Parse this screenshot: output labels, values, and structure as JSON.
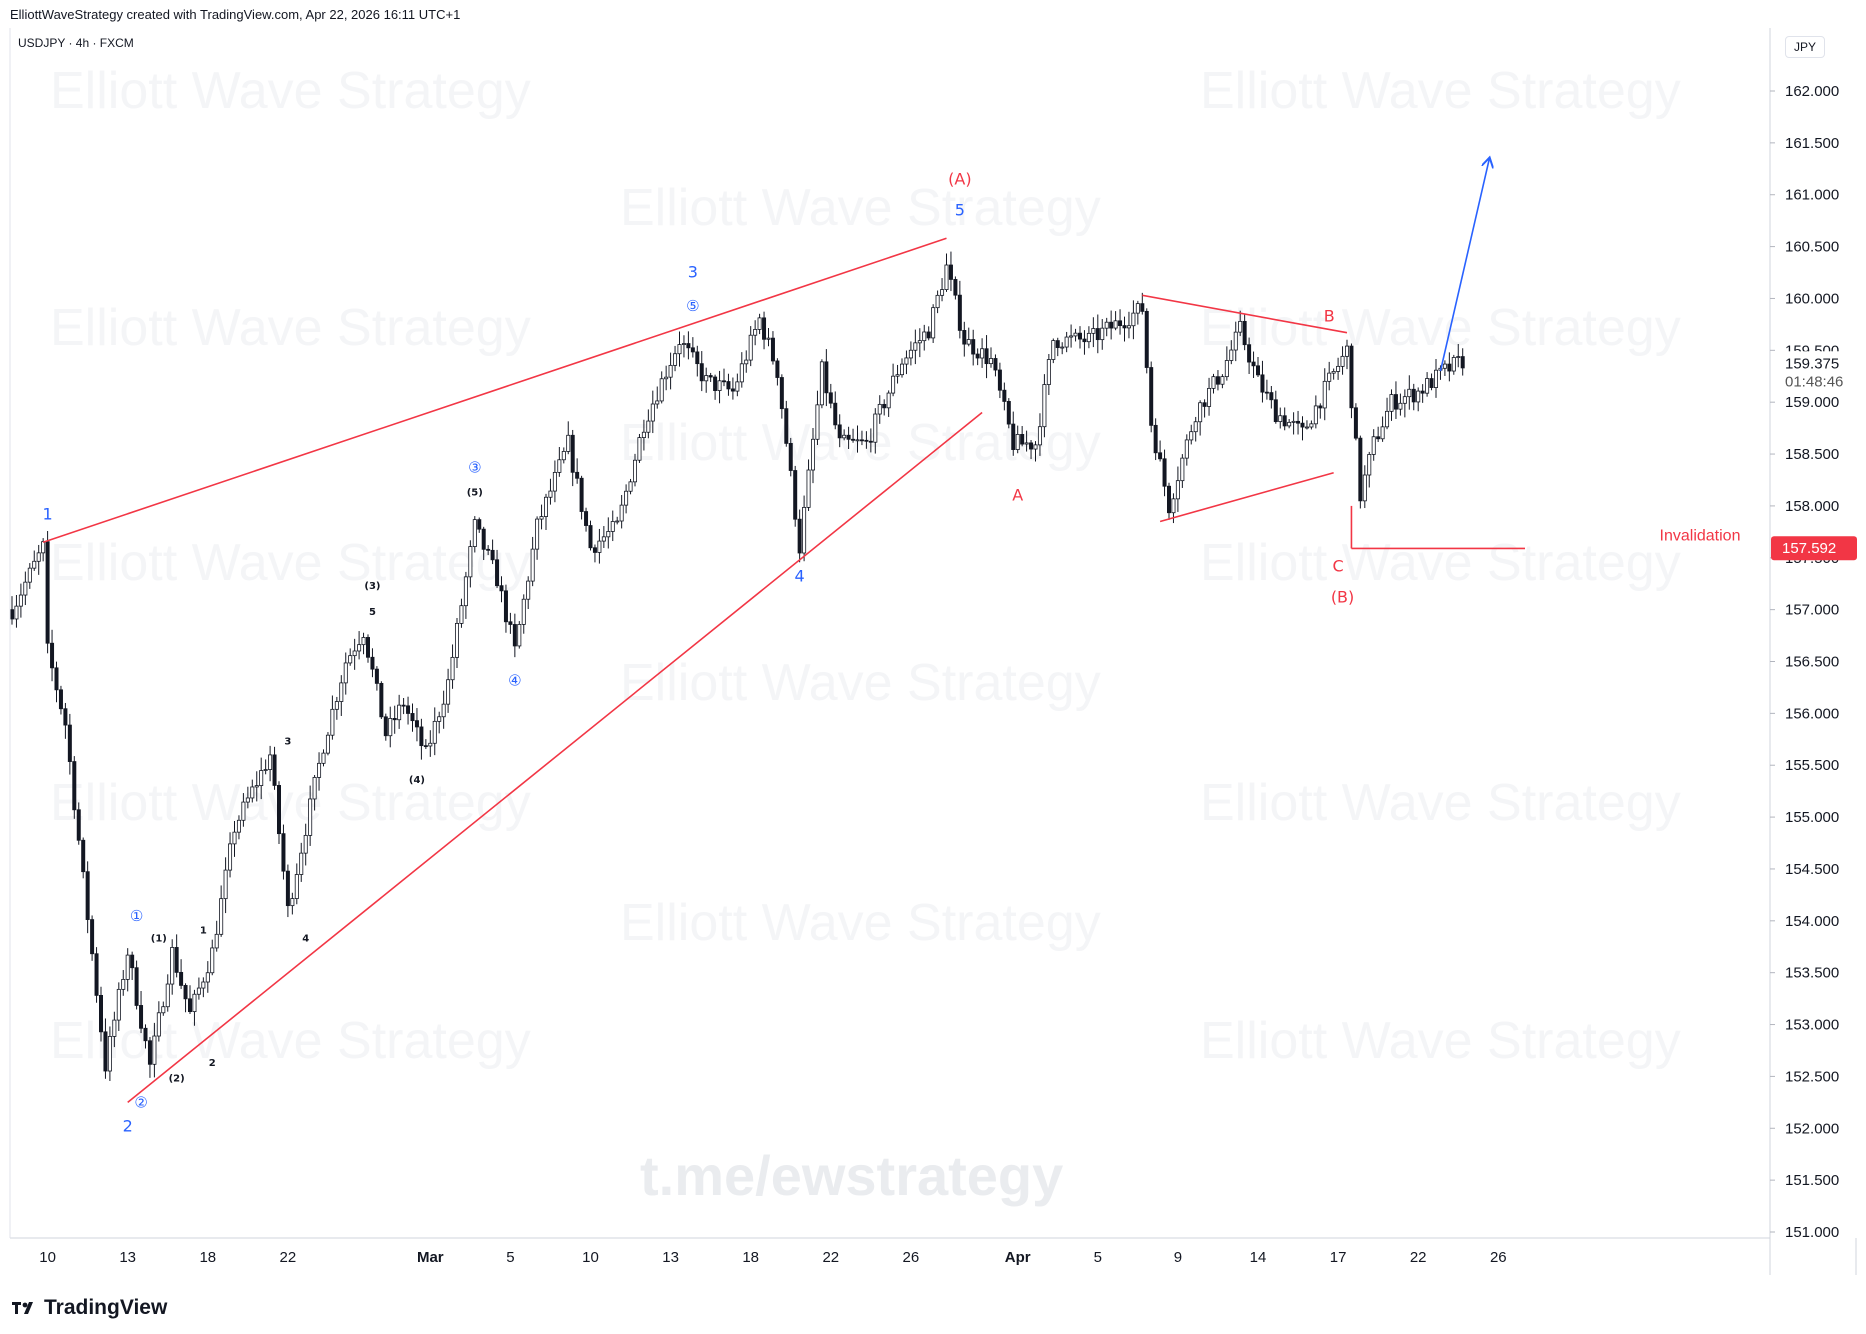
{
  "header": {
    "caption": "ElliottWaveStrategy created with TradingView.com, Apr 22, 2026 16:11 UTC+1",
    "symbol_line": "USDJPY · 4h · FXCM",
    "currency_button": "JPY"
  },
  "footer": {
    "brand": "TradingView"
  },
  "watermarks": {
    "tile_text": "Elliott Wave Strategy",
    "url": "t.me/ewstrategy"
  },
  "colors": {
    "red": "#f23645",
    "blue": "#2962ff",
    "candle": "#131722",
    "grid": "#e0e3eb"
  },
  "chart_data": {
    "type": "candlestick",
    "title": "",
    "xlabel": "",
    "ylabel": "",
    "price_scale": {
      "ylim": [
        151.0,
        162.0
      ]
    },
    "y_ticks": [
      "162.000",
      "161.500",
      "161.000",
      "160.500",
      "160.000",
      "159.500",
      "159.000",
      "158.500",
      "158.000",
      "157.500",
      "157.000",
      "156.500",
      "156.000",
      "155.500",
      "155.000",
      "154.500",
      "154.000",
      "153.500",
      "153.000",
      "152.500",
      "152.000",
      "151.500",
      "151.000"
    ],
    "x_ticks": [
      {
        "label": "10",
        "i": 8
      },
      {
        "label": "13",
        "i": 26
      },
      {
        "label": "18",
        "i": 44
      },
      {
        "label": "22",
        "i": 62
      },
      {
        "label": "Mar",
        "i": 94,
        "bold": true
      },
      {
        "label": "5",
        "i": 112
      },
      {
        "label": "10",
        "i": 130
      },
      {
        "label": "13",
        "i": 148
      },
      {
        "label": "18",
        "i": 166
      },
      {
        "label": "22",
        "i": 184
      },
      {
        "label": "26",
        "i": 202
      },
      {
        "label": "Apr",
        "i": 226,
        "bold": true
      },
      {
        "label": "5",
        "i": 244
      },
      {
        "label": "9",
        "i": 262
      },
      {
        "label": "14",
        "i": 280
      },
      {
        "label": "17",
        "i": 298
      },
      {
        "label": "22",
        "i": 316
      },
      {
        "label": "26",
        "i": 334
      }
    ],
    "last_price": "159.375",
    "countdown": "01:48:46",
    "invalidation_price": "157.592",
    "invalidation_label": "Invalidation",
    "path": [
      {
        "i": 0,
        "p": 157.0
      },
      {
        "i": 7,
        "p": 157.6
      },
      {
        "i": 8,
        "p": 156.6
      },
      {
        "i": 12,
        "p": 155.9
      },
      {
        "i": 16,
        "p": 154.4
      },
      {
        "i": 21,
        "p": 152.6
      },
      {
        "i": 26,
        "p": 153.7
      },
      {
        "i": 31,
        "p": 152.6
      },
      {
        "i": 36,
        "p": 153.7
      },
      {
        "i": 40,
        "p": 153.1
      },
      {
        "i": 45,
        "p": 153.7
      },
      {
        "i": 50,
        "p": 154.9
      },
      {
        "i": 58,
        "p": 155.6
      },
      {
        "i": 62,
        "p": 154.1
      },
      {
        "i": 70,
        "p": 155.7
      },
      {
        "i": 75,
        "p": 156.5
      },
      {
        "i": 79,
        "p": 156.8
      },
      {
        "i": 84,
        "p": 155.8
      },
      {
        "i": 88,
        "p": 156.1
      },
      {
        "i": 93,
        "p": 155.6
      },
      {
        "i": 98,
        "p": 156.3
      },
      {
        "i": 104,
        "p": 157.8
      },
      {
        "i": 109,
        "p": 157.3
      },
      {
        "i": 113,
        "p": 156.6
      },
      {
        "i": 118,
        "p": 157.8
      },
      {
        "i": 125,
        "p": 158.6
      },
      {
        "i": 130,
        "p": 157.6
      },
      {
        "i": 136,
        "p": 157.8
      },
      {
        "i": 142,
        "p": 158.8
      },
      {
        "i": 150,
        "p": 159.6
      },
      {
        "i": 156,
        "p": 159.2
      },
      {
        "i": 162,
        "p": 159.1
      },
      {
        "i": 168,
        "p": 159.8
      },
      {
        "i": 172,
        "p": 159.3
      },
      {
        "i": 177,
        "p": 157.6
      },
      {
        "i": 182,
        "p": 159.3
      },
      {
        "i": 186,
        "p": 158.6
      },
      {
        "i": 192,
        "p": 158.6
      },
      {
        "i": 200,
        "p": 159.4
      },
      {
        "i": 206,
        "p": 159.7
      },
      {
        "i": 210,
        "p": 160.3
      },
      {
        "i": 214,
        "p": 159.6
      },
      {
        "i": 220,
        "p": 159.4
      },
      {
        "i": 225,
        "p": 158.6
      },
      {
        "i": 230,
        "p": 158.6
      },
      {
        "i": 234,
        "p": 159.6
      },
      {
        "i": 242,
        "p": 159.6
      },
      {
        "i": 250,
        "p": 159.8
      },
      {
        "i": 254,
        "p": 159.9
      },
      {
        "i": 256,
        "p": 158.8
      },
      {
        "i": 260,
        "p": 158.0
      },
      {
        "i": 266,
        "p": 158.9
      },
      {
        "i": 272,
        "p": 159.3
      },
      {
        "i": 276,
        "p": 159.7
      },
      {
        "i": 280,
        "p": 159.2
      },
      {
        "i": 284,
        "p": 158.9
      },
      {
        "i": 290,
        "p": 158.7
      },
      {
        "i": 296,
        "p": 159.2
      },
      {
        "i": 300,
        "p": 159.5
      },
      {
        "i": 303,
        "p": 158.1
      },
      {
        "i": 306,
        "p": 158.6
      },
      {
        "i": 310,
        "p": 159.0
      },
      {
        "i": 316,
        "p": 159.1
      },
      {
        "i": 322,
        "p": 159.3
      },
      {
        "i": 326,
        "p": 159.4
      }
    ],
    "trendlines": [
      {
        "name": "wedge-upper",
        "color": "red",
        "from": {
          "i": 7,
          "p": 157.65
        },
        "to": {
          "i": 210,
          "p": 160.58
        }
      },
      {
        "name": "wedge-lower",
        "color": "red",
        "from": {
          "i": 26,
          "p": 152.25
        },
        "to": {
          "i": 218,
          "p": 158.9
        }
      },
      {
        "name": "triangle-upper",
        "color": "red",
        "from": {
          "i": 254,
          "p": 160.03
        },
        "to": {
          "i": 300,
          "p": 159.67
        }
      },
      {
        "name": "triangle-lower",
        "color": "red",
        "from": {
          "i": 258,
          "p": 157.85
        },
        "to": {
          "i": 297,
          "p": 158.32
        }
      },
      {
        "name": "projection-arrow",
        "color": "blue",
        "arrow": true,
        "from": {
          "i": 321,
          "p": 159.3
        },
        "to": {
          "i": 332,
          "p": 161.35
        }
      },
      {
        "name": "invalidation-line",
        "color": "red",
        "from": {
          "i": 301,
          "p": 157.59
        },
        "to": {
          "i": 340,
          "p": 157.59
        }
      },
      {
        "name": "invalidation-drop",
        "color": "red",
        "from": {
          "i": 301,
          "p": 158.0
        },
        "to": {
          "i": 301,
          "p": 157.59
        }
      }
    ],
    "annotations": [
      {
        "text": "1",
        "i": 8,
        "p": 157.87,
        "color": "blue",
        "size": 16
      },
      {
        "text": "2",
        "i": 26,
        "p": 151.97,
        "color": "blue",
        "size": 16
      },
      {
        "text": "②",
        "i": 29,
        "p": 152.2,
        "color": "blue",
        "size": 15
      },
      {
        "text": "①",
        "i": 28,
        "p": 154.0,
        "color": "blue",
        "size": 15
      },
      {
        "text": "(1)",
        "i": 33,
        "p": 153.8,
        "color": "black",
        "size": 10
      },
      {
        "text": "(2)",
        "i": 37,
        "p": 152.45,
        "color": "black",
        "size": 10
      },
      {
        "text": "1",
        "i": 43,
        "p": 153.88,
        "color": "black",
        "size": 10
      },
      {
        "text": "2",
        "i": 45,
        "p": 152.6,
        "color": "black",
        "size": 10
      },
      {
        "text": "3",
        "i": 62,
        "p": 155.7,
        "color": "black",
        "size": 10
      },
      {
        "text": "4",
        "i": 66,
        "p": 153.8,
        "color": "black",
        "size": 10
      },
      {
        "text": "(3)",
        "i": 81,
        "p": 157.2,
        "color": "black",
        "size": 10
      },
      {
        "text": "5",
        "i": 81,
        "p": 156.95,
        "color": "black",
        "size": 10
      },
      {
        "text": "(4)",
        "i": 91,
        "p": 155.33,
        "color": "black",
        "size": 10
      },
      {
        "text": "③",
        "i": 104,
        "p": 158.32,
        "color": "blue",
        "size": 15
      },
      {
        "text": "(5)",
        "i": 104,
        "p": 158.1,
        "color": "black",
        "size": 10
      },
      {
        "text": "④",
        "i": 113,
        "p": 156.27,
        "color": "blue",
        "size": 15
      },
      {
        "text": "3",
        "i": 153,
        "p": 160.2,
        "color": "blue",
        "size": 16
      },
      {
        "text": "⑤",
        "i": 153,
        "p": 159.88,
        "color": "blue",
        "size": 15
      },
      {
        "text": "4",
        "i": 177,
        "p": 157.27,
        "color": "blue",
        "size": 16
      },
      {
        "text": "5",
        "i": 213,
        "p": 160.8,
        "color": "blue",
        "size": 16
      },
      {
        "text": "(A)",
        "i": 213,
        "p": 161.1,
        "color": "red",
        "size": 16
      },
      {
        "text": "A",
        "i": 226,
        "p": 158.05,
        "color": "red",
        "size": 16
      },
      {
        "text": "B",
        "i": 296,
        "p": 159.78,
        "color": "red",
        "size": 16
      },
      {
        "text": "C",
        "i": 298,
        "p": 157.37,
        "color": "red",
        "size": 16
      },
      {
        "text": "(B)",
        "i": 299,
        "p": 157.07,
        "color": "red",
        "size": 16
      }
    ]
  }
}
